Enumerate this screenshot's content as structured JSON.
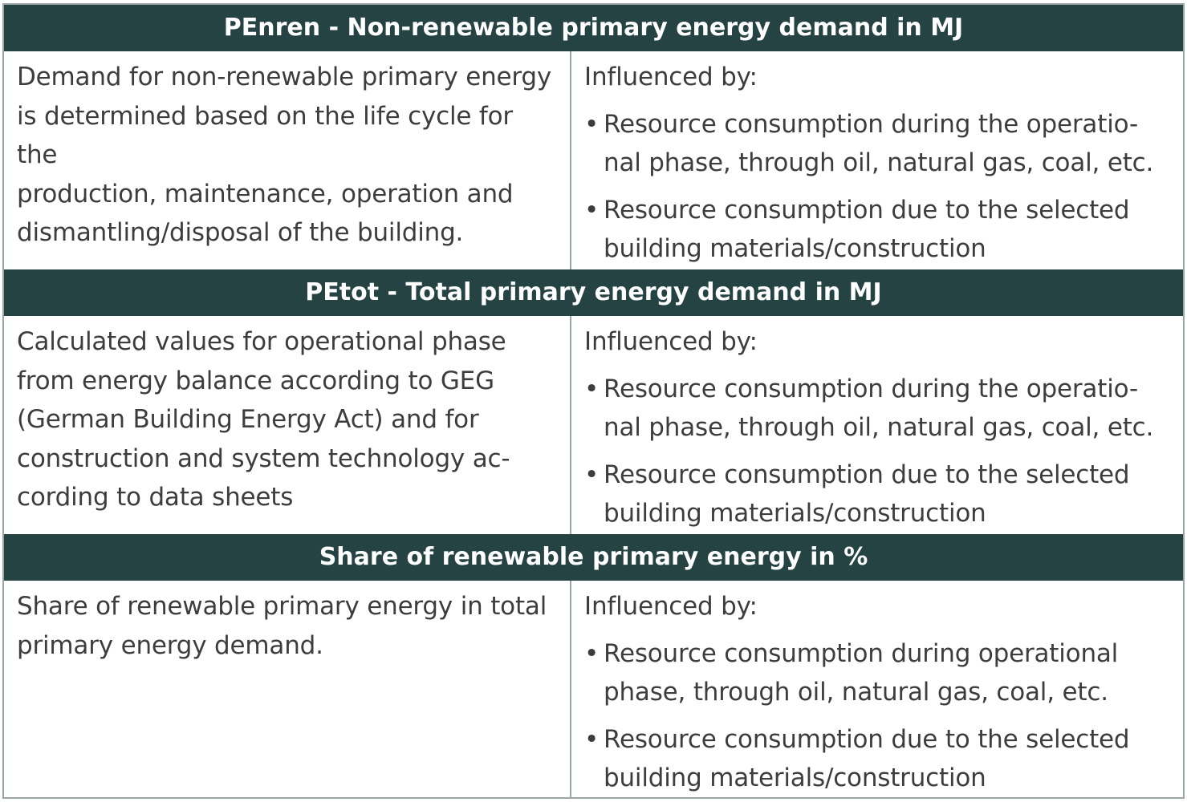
{
  "sections": [
    {
      "title": "PEnren - Non-renewable primary energy demand in MJ",
      "description_lines": [
        "Demand for non-renewable primary energy",
        "is determined based on the life cycle for the",
        "production, maintenance, operation and",
        "dismantling/disposal of the building."
      ],
      "influenced_label": "Influenced by:",
      "bullets": [
        {
          "lines": [
            "Resource consumption during the operatio-",
            "nal phase, through oil, natural gas, coal, etc."
          ]
        },
        {
          "lines": [
            "Resource consumption due to the selected",
            "building materials/construction"
          ]
        }
      ]
    },
    {
      "title": "PEtot - Total primary energy demand in MJ",
      "description_lines": [
        "Calculated values for operational phase",
        "from energy balance according to GEG",
        "(German Building Energy Act) and for",
        "construction and system technology ac-",
        "cording to data sheets"
      ],
      "influenced_label": "Influenced by:",
      "bullets": [
        {
          "lines": [
            "Resource consumption during the operatio-",
            "nal phase, through oil, natural gas, coal, etc."
          ]
        },
        {
          "lines": [
            "Resource consumption due to the selected",
            "building materials/construction"
          ]
        }
      ]
    },
    {
      "title": "Share of renewable primary energy in %",
      "description_lines": [
        "Share of renewable primary energy in total",
        "primary energy demand."
      ],
      "influenced_label": "Influenced by:",
      "bullets": [
        {
          "lines": [
            "Resource consumption during operational",
            "phase, through oil, natural gas, coal, etc."
          ]
        },
        {
          "lines": [
            "Resource consumption due to the selected",
            "building materials/construction"
          ]
        }
      ]
    }
  ],
  "bullet_glyph": "•",
  "colors": {
    "header_bg": "#264344",
    "header_text": "#ffffff",
    "body_text": "#3d3d3d",
    "border": "#9aa5a5"
  }
}
